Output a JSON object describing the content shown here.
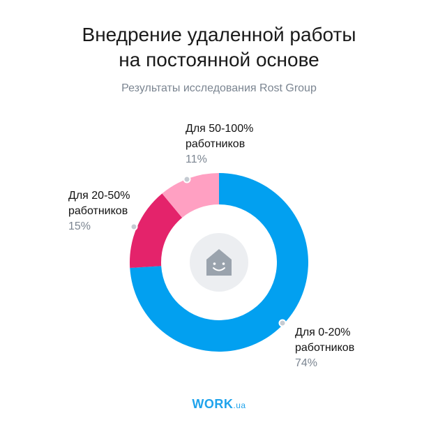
{
  "title": {
    "line1": "Внедрение удаленной работы",
    "line2": "на постоянной основе"
  },
  "subtitle": "Результаты исследования Rost Group",
  "logo": {
    "brand": "WORK",
    "domain": ".ua"
  },
  "colors": {
    "s0": "#02a0f0",
    "s1": "#e4236b",
    "s2": "#ffa0c2",
    "center": "#eceef1",
    "icon": "#9aa3ad"
  },
  "center_icon": "house-smile-icon",
  "chart_data": {
    "type": "pie",
    "title": "Внедрение удаленной работы на постоянной основе",
    "subtitle": "Результаты исследования Rost Group",
    "slices": [
      {
        "label_line1": "Для 0-20%",
        "label_line2": "работников",
        "value": 74,
        "value_label": "74%"
      },
      {
        "label_line1": "Для 20-50%",
        "label_line2": "работников",
        "value": 15,
        "value_label": "15%"
      },
      {
        "label_line1": "Для 50-100%",
        "label_line2": "работников",
        "value": 11,
        "value_label": "11%"
      }
    ]
  }
}
